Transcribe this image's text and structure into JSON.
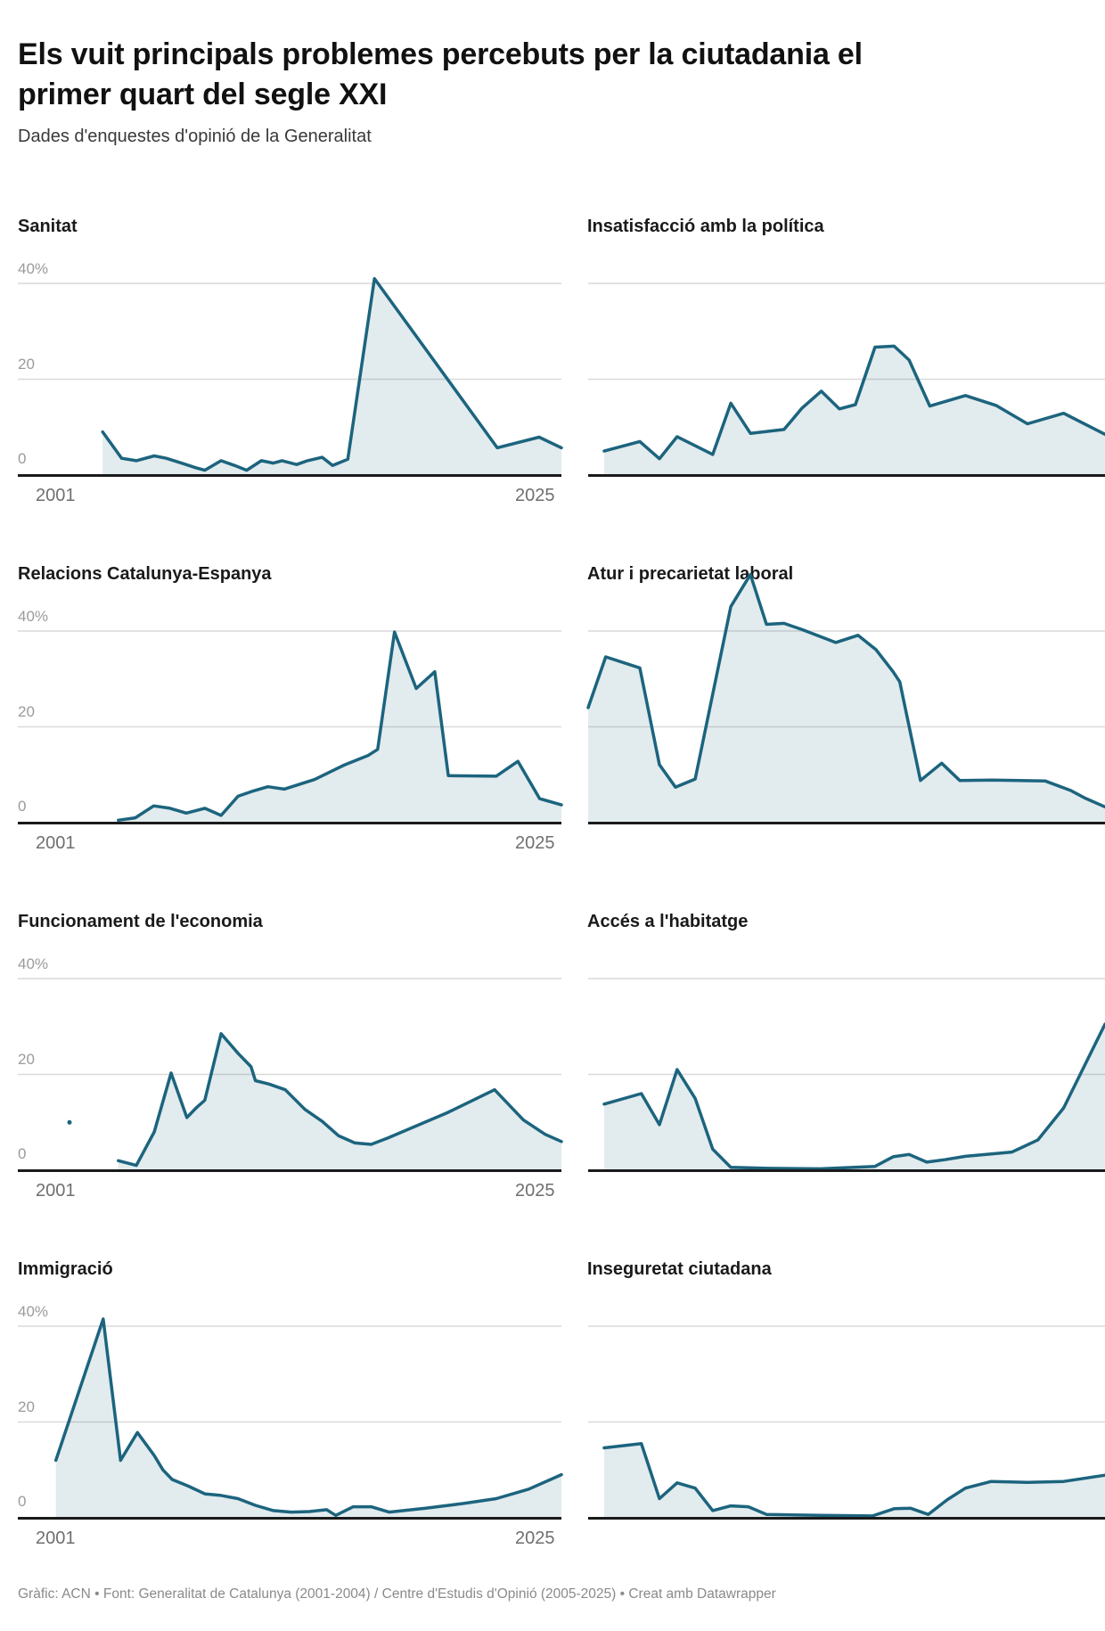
{
  "header": {
    "title": "Els vuit principals problemes percebuts per la ciutadania el primer quart del segle XXI",
    "subtitle": "Dades d'enquestes d'opinió de la Generalitat"
  },
  "footer": {
    "credit": "Gràfic: ACN • Font: Generalitat de Catalunya (2001-2004) / Centre d'Estudis d'Opinió (2005-2025) • Creat amb Datawrapper"
  },
  "colors": {
    "line": "#1c647e",
    "fill": "rgba(28,100,126,0.13)",
    "grid": "#d9d9d9",
    "axis": "#1a1a1a",
    "y_label": "#9b9b9b",
    "x_label": "#6f6f6f"
  },
  "axis": {
    "unit": "%",
    "x_ticks": [
      "2001",
      "2025"
    ],
    "y_tick_labels": [
      "40%",
      "20",
      "0"
    ],
    "ylim": [
      0,
      52
    ]
  },
  "chart_data": [
    {
      "type": "area",
      "title": "Sanitat",
      "ylabel": "%",
      "ylim": [
        0,
        52
      ],
      "y_gridlines": [
        20,
        40
      ],
      "x_range": [
        "2001",
        "2025"
      ],
      "points": [
        [
          0.156,
          9
        ],
        [
          0.191,
          3.5
        ],
        [
          0.218,
          3
        ],
        [
          0.251,
          4
        ],
        [
          0.273,
          3.5
        ],
        [
          0.301,
          2.5
        ],
        [
          0.328,
          1.5
        ],
        [
          0.344,
          1
        ],
        [
          0.374,
          3
        ],
        [
          0.399,
          2
        ],
        [
          0.421,
          1
        ],
        [
          0.448,
          3
        ],
        [
          0.47,
          2.5
        ],
        [
          0.486,
          3
        ],
        [
          0.513,
          2.2
        ],
        [
          0.533,
          3
        ],
        [
          0.56,
          3.7
        ],
        [
          0.579,
          2
        ],
        [
          0.607,
          3.3
        ],
        [
          0.656,
          41
        ],
        [
          0.882,
          5.7
        ],
        [
          0.959,
          7.9
        ],
        [
          1.0,
          5.7
        ]
      ]
    },
    {
      "type": "area",
      "title": "Insatisfacció amb la política",
      "ylabel": "%",
      "ylim": [
        0,
        52
      ],
      "y_gridlines": [
        20,
        40
      ],
      "x_range": [
        "2001",
        "2025"
      ],
      "points": [
        [
          0.031,
          5
        ],
        [
          0.1,
          7
        ],
        [
          0.138,
          3.4
        ],
        [
          0.172,
          8
        ],
        [
          0.241,
          4.3
        ],
        [
          0.276,
          15
        ],
        [
          0.314,
          8.7
        ],
        [
          0.379,
          9.5
        ],
        [
          0.414,
          14
        ],
        [
          0.451,
          17.5
        ],
        [
          0.486,
          13.8
        ],
        [
          0.517,
          14.7
        ],
        [
          0.555,
          26.7
        ],
        [
          0.592,
          26.9
        ],
        [
          0.621,
          24
        ],
        [
          0.661,
          14.4
        ],
        [
          0.73,
          16.6
        ],
        [
          0.79,
          14.5
        ],
        [
          0.85,
          10.7
        ],
        [
          0.92,
          12.9
        ],
        [
          1.0,
          8.5
        ]
      ]
    },
    {
      "type": "area",
      "title": "Relacions Catalunya-Espanya",
      "ylabel": "%",
      "ylim": [
        0,
        52
      ],
      "y_gridlines": [
        20,
        40
      ],
      "x_range": [
        "2001",
        "2025"
      ],
      "points": [
        [
          0.185,
          0.5
        ],
        [
          0.216,
          1
        ],
        [
          0.25,
          3.5
        ],
        [
          0.28,
          3
        ],
        [
          0.31,
          2
        ],
        [
          0.344,
          3
        ],
        [
          0.374,
          1.5
        ],
        [
          0.405,
          5.5
        ],
        [
          0.43,
          6.5
        ],
        [
          0.46,
          7.5
        ],
        [
          0.49,
          7
        ],
        [
          0.546,
          9
        ],
        [
          0.6,
          12
        ],
        [
          0.644,
          14
        ],
        [
          0.662,
          15.3
        ],
        [
          0.693,
          39.8
        ],
        [
          0.733,
          28
        ],
        [
          0.767,
          31.5
        ],
        [
          0.792,
          9.8
        ],
        [
          0.88,
          9.7
        ],
        [
          0.92,
          12.8
        ],
        [
          0.96,
          5
        ],
        [
          1.0,
          3.7
        ]
      ]
    },
    {
      "type": "area",
      "title": "Atur i precarietat laboral",
      "ylabel": "%",
      "ylim": [
        0,
        52
      ],
      "y_gridlines": [
        20,
        40
      ],
      "x_range": [
        "2001",
        "2025"
      ],
      "points": [
        [
          0.0,
          24
        ],
        [
          0.034,
          34.6
        ],
        [
          0.1,
          32.3
        ],
        [
          0.138,
          12.1
        ],
        [
          0.169,
          7.4
        ],
        [
          0.207,
          9.1
        ],
        [
          0.276,
          45.1
        ],
        [
          0.314,
          51.8
        ],
        [
          0.345,
          41.4
        ],
        [
          0.379,
          41.6
        ],
        [
          0.414,
          40.3
        ],
        [
          0.479,
          37.6
        ],
        [
          0.522,
          39.1
        ],
        [
          0.557,
          36.1
        ],
        [
          0.59,
          31.5
        ],
        [
          0.603,
          29.4
        ],
        [
          0.643,
          8.8
        ],
        [
          0.684,
          12.4
        ],
        [
          0.719,
          8.8
        ],
        [
          0.781,
          8.9
        ],
        [
          0.884,
          8.7
        ],
        [
          0.934,
          6.7
        ],
        [
          0.96,
          5.2
        ],
        [
          1.0,
          3.3
        ]
      ]
    },
    {
      "type": "area",
      "title": "Funcionament de l'economia",
      "ylabel": "%",
      "ylim": [
        0,
        52
      ],
      "y_gridlines": [
        20,
        40
      ],
      "x_range": [
        "2001",
        "2025"
      ],
      "isolated_points": [
        [
          0.095,
          10
        ]
      ],
      "points": [
        [
          0.185,
          2
        ],
        [
          0.218,
          1
        ],
        [
          0.251,
          8
        ],
        [
          0.282,
          20.3
        ],
        [
          0.311,
          11
        ],
        [
          0.328,
          13
        ],
        [
          0.344,
          14.6
        ],
        [
          0.374,
          28.5
        ],
        [
          0.405,
          24.4
        ],
        [
          0.429,
          21.6
        ],
        [
          0.437,
          18.7
        ],
        [
          0.462,
          18
        ],
        [
          0.492,
          16.8
        ],
        [
          0.528,
          12.7
        ],
        [
          0.56,
          10.2
        ],
        [
          0.59,
          7.2
        ],
        [
          0.62,
          5.7
        ],
        [
          0.65,
          5.4
        ],
        [
          0.68,
          6.7
        ],
        [
          0.79,
          12
        ],
        [
          0.877,
          16.8
        ],
        [
          0.93,
          10.5
        ],
        [
          0.97,
          7.5
        ],
        [
          1.0,
          6
        ]
      ]
    },
    {
      "type": "area",
      "title": "Accés a l'habitatge",
      "ylabel": "%",
      "ylim": [
        0,
        52
      ],
      "y_gridlines": [
        20,
        40
      ],
      "x_range": [
        "2001",
        "2025"
      ],
      "points": [
        [
          0.031,
          13.8
        ],
        [
          0.103,
          16
        ],
        [
          0.138,
          9.5
        ],
        [
          0.172,
          21
        ],
        [
          0.207,
          15
        ],
        [
          0.241,
          4.4
        ],
        [
          0.276,
          0.6
        ],
        [
          0.35,
          0.4
        ],
        [
          0.45,
          0.3
        ],
        [
          0.555,
          0.8
        ],
        [
          0.59,
          2.8
        ],
        [
          0.621,
          3.3
        ],
        [
          0.655,
          1.7
        ],
        [
          0.69,
          2.2
        ],
        [
          0.73,
          2.9
        ],
        [
          0.82,
          3.8
        ],
        [
          0.87,
          6.3
        ],
        [
          0.92,
          13
        ],
        [
          1.0,
          30.5
        ]
      ]
    },
    {
      "type": "area",
      "title": "Immigració",
      "ylabel": "%",
      "ylim": [
        0,
        52
      ],
      "y_gridlines": [
        20,
        40
      ],
      "x_range": [
        "2001",
        "2025"
      ],
      "points": [
        [
          0.07,
          12
        ],
        [
          0.157,
          41.5
        ],
        [
          0.189,
          12
        ],
        [
          0.22,
          17.8
        ],
        [
          0.251,
          13
        ],
        [
          0.267,
          10
        ],
        [
          0.284,
          8
        ],
        [
          0.314,
          6.6
        ],
        [
          0.344,
          5
        ],
        [
          0.372,
          4.7
        ],
        [
          0.405,
          4
        ],
        [
          0.437,
          2.6
        ],
        [
          0.47,
          1.5
        ],
        [
          0.503,
          1.2
        ],
        [
          0.536,
          1.3
        ],
        [
          0.568,
          1.7
        ],
        [
          0.585,
          0.5
        ],
        [
          0.617,
          2.3
        ],
        [
          0.65,
          2.3
        ],
        [
          0.683,
          1.2
        ],
        [
          0.75,
          2
        ],
        [
          0.82,
          3
        ],
        [
          0.88,
          4
        ],
        [
          0.94,
          6
        ],
        [
          1.0,
          9
        ]
      ]
    },
    {
      "type": "area",
      "title": "Inseguretat ciutadana",
      "ylabel": "%",
      "ylim": [
        0,
        52
      ],
      "y_gridlines": [
        20,
        40
      ],
      "x_range": [
        "2001",
        "2025"
      ],
      "points": [
        [
          0.031,
          14.6
        ],
        [
          0.103,
          15.5
        ],
        [
          0.138,
          4
        ],
        [
          0.172,
          7.3
        ],
        [
          0.207,
          6.2
        ],
        [
          0.241,
          1.5
        ],
        [
          0.276,
          2.5
        ],
        [
          0.31,
          2.3
        ],
        [
          0.345,
          0.7
        ],
        [
          0.45,
          0.5
        ],
        [
          0.55,
          0.4
        ],
        [
          0.592,
          1.9
        ],
        [
          0.624,
          2
        ],
        [
          0.658,
          0.7
        ],
        [
          0.695,
          3.8
        ],
        [
          0.73,
          6.2
        ],
        [
          0.78,
          7.6
        ],
        [
          0.85,
          7.4
        ],
        [
          0.92,
          7.6
        ],
        [
          1.0,
          8.9
        ]
      ]
    }
  ]
}
